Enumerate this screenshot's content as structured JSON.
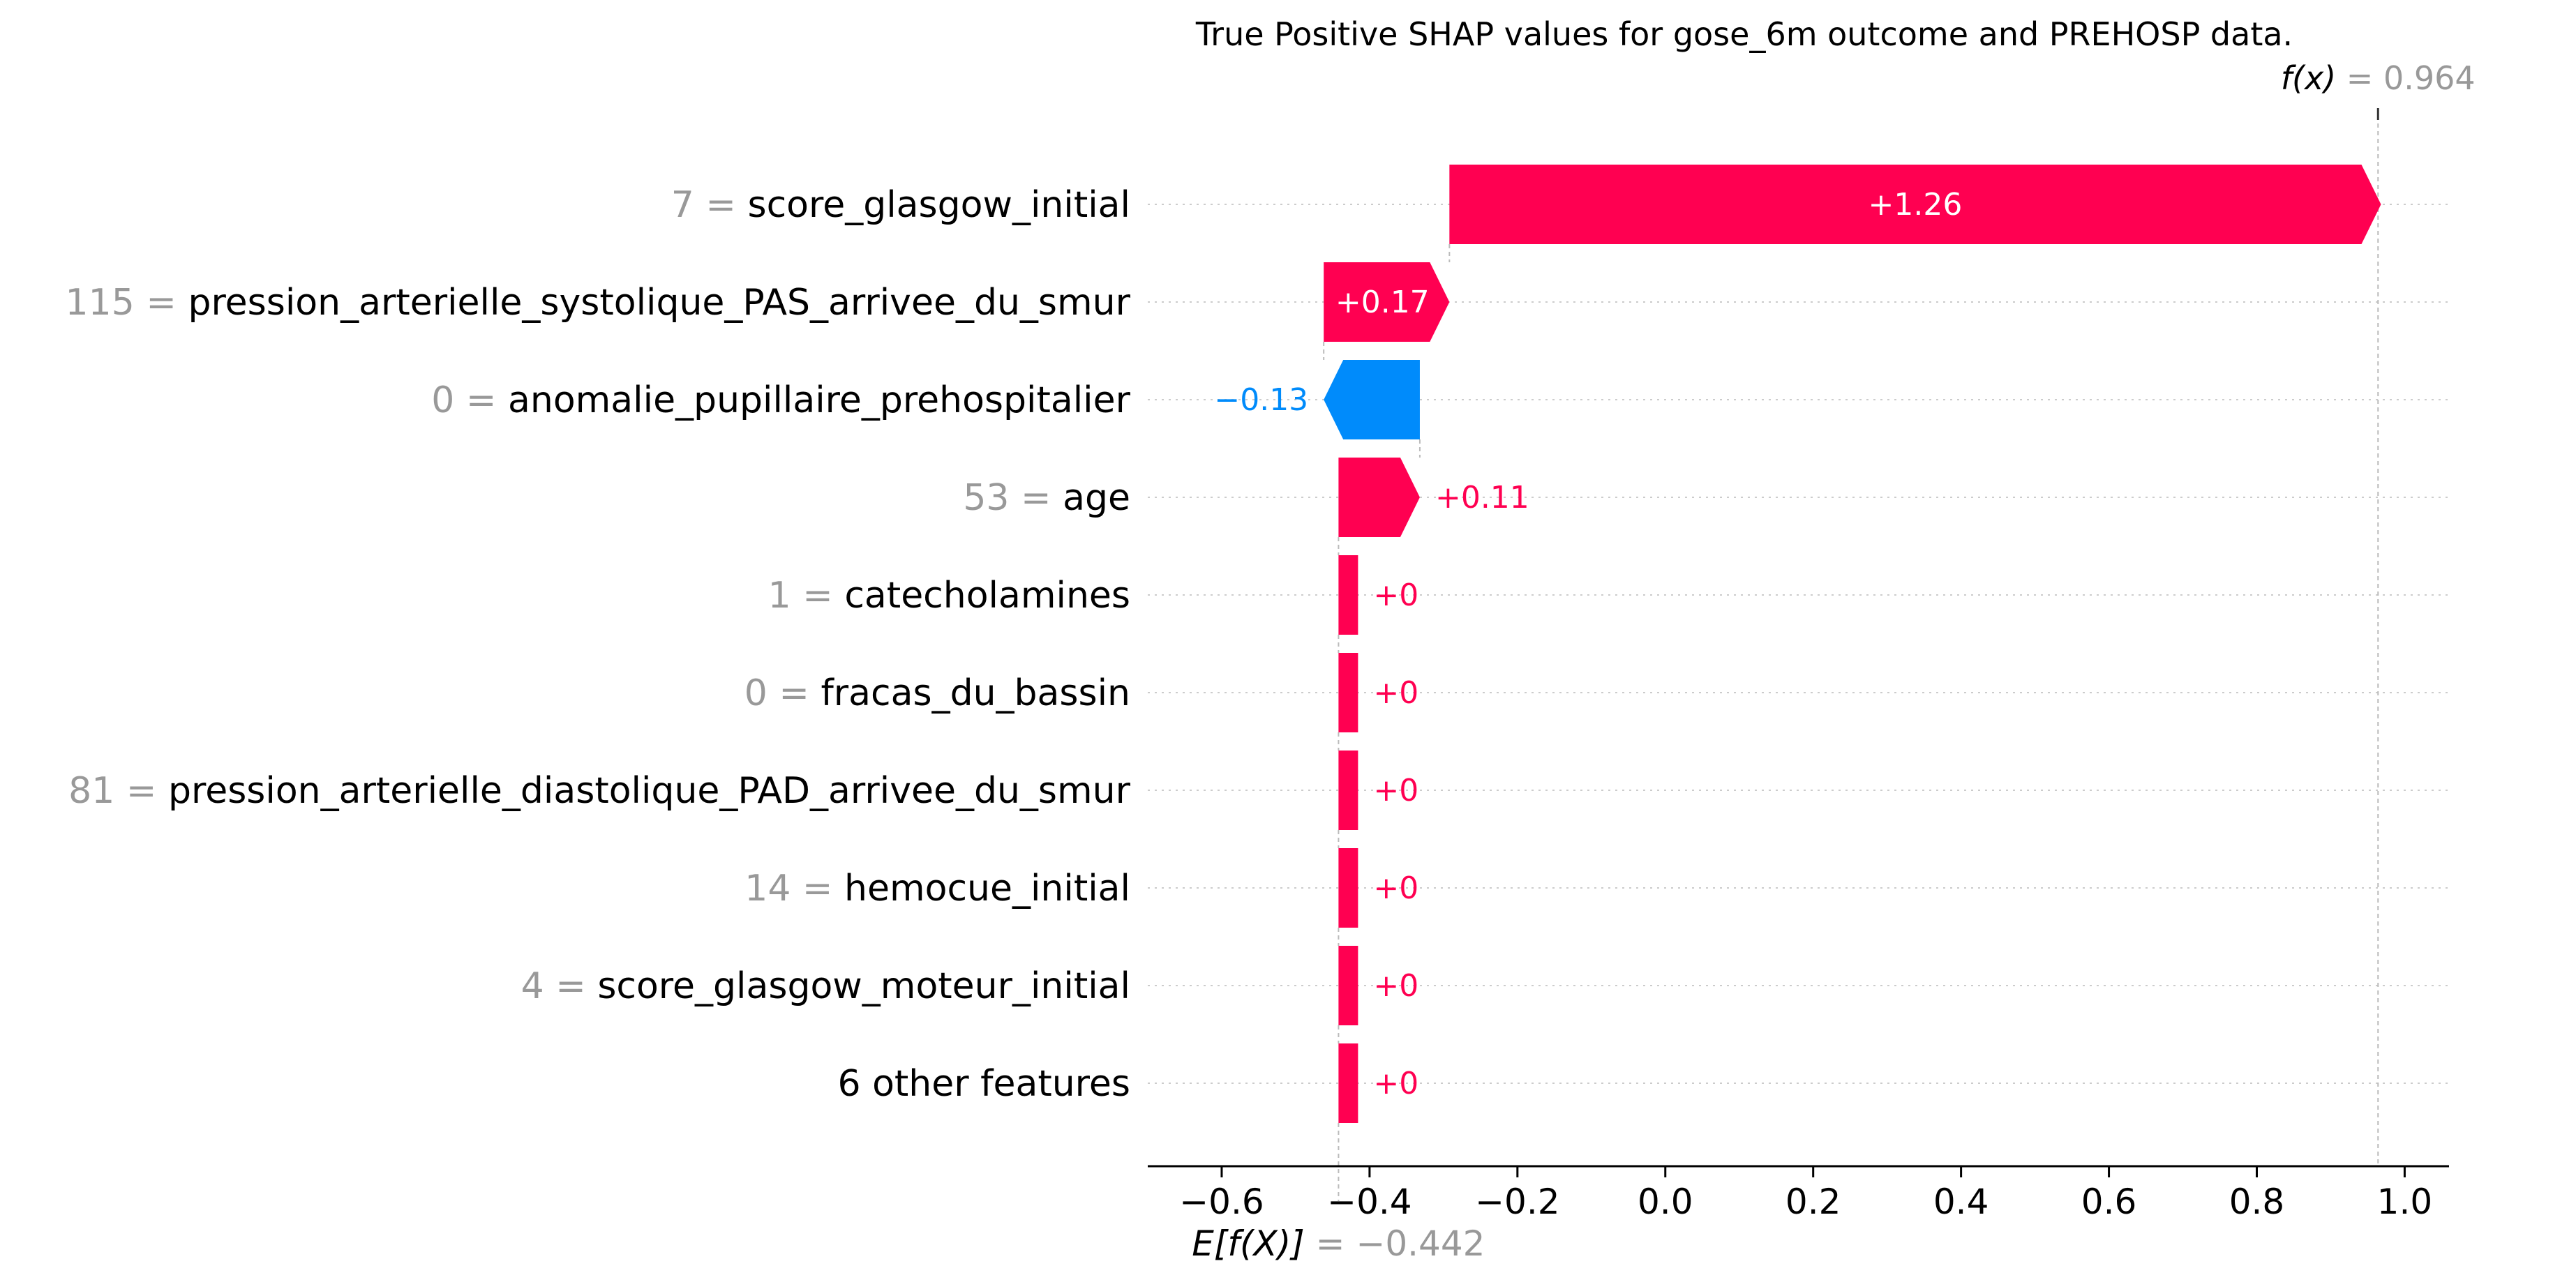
{
  "chart_data": {
    "type": "waterfall",
    "title": "True Positive SHAP values for gose_6m outcome and PREHOSP data.",
    "xlim": [
      -0.7,
      1.06
    ],
    "x_ticks": [
      -0.6,
      -0.4,
      -0.2,
      0.0,
      0.2,
      0.4,
      0.6,
      0.8,
      1.0
    ],
    "x_tick_labels": [
      "−0.6",
      "−0.4",
      "−0.2",
      "0.0",
      "0.2",
      "0.4",
      "0.6",
      "0.8",
      "1.0"
    ],
    "grid": "horizontal dotted lines at each feature row",
    "base_value": -0.442,
    "base_label_name": "E[f(X)]",
    "base_label_value": "= −0.442",
    "output_value": 0.964,
    "output_label_name": "f(x)",
    "output_label_value": "= 0.964",
    "features": [
      {
        "value": "7 =",
        "name": "score_glasgow_initial",
        "shap": 1.26,
        "label": "+1.26"
      },
      {
        "value": "115 =",
        "name": "pression_arterielle_systolique_PAS_arrivee_du_smur",
        "shap": 0.17,
        "label": "+0.17"
      },
      {
        "value": "0 =",
        "name": "anomalie_pupillaire_prehospitalier",
        "shap": -0.13,
        "label": "−0.13"
      },
      {
        "value": "53 =",
        "name": "age",
        "shap": 0.11,
        "label": "+0.11"
      },
      {
        "value": "1 =",
        "name": "catecholamines",
        "shap": 0.0,
        "label": "+0"
      },
      {
        "value": "0 =",
        "name": "fracas_du_bassin",
        "shap": 0.0,
        "label": "+0"
      },
      {
        "value": "81 =",
        "name": "pression_arterielle_diastolique_PAD_arrivee_du_smur",
        "shap": 0.0,
        "label": "+0"
      },
      {
        "value": "14 =",
        "name": "hemocue_initial",
        "shap": 0.0,
        "label": "+0"
      },
      {
        "value": "4 =",
        "name": "score_glasgow_moteur_initial",
        "shap": 0.0,
        "label": "+0"
      },
      {
        "value": "",
        "name": "6 other features",
        "shap": 0.0,
        "label": "+0"
      }
    ],
    "colors": {
      "positive": "#ff0051",
      "negative": "#008bfb",
      "feature_value": "#999999",
      "feature_name": "#000000",
      "grid": "#cccccc"
    }
  }
}
